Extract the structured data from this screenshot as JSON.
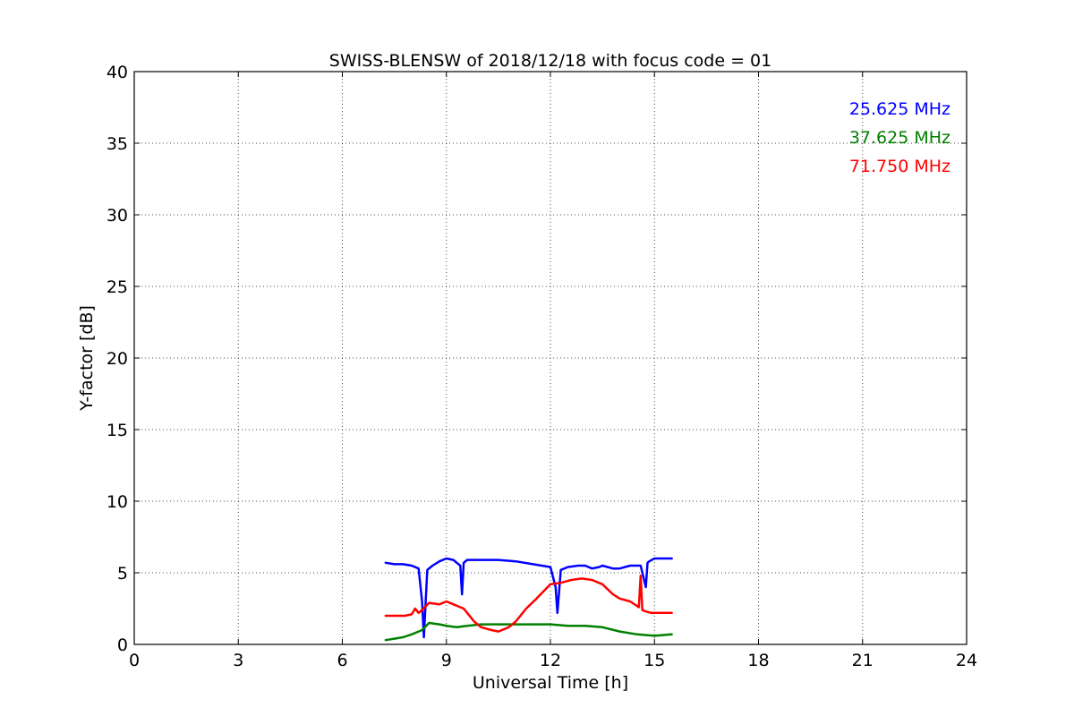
{
  "chart_data": {
    "type": "line",
    "title": "SWISS-BLENSW of 2018/12/18 with focus code = 01",
    "xlabel": "Universal Time [h]",
    "ylabel": "Y-factor [dB]",
    "xlim": [
      0,
      24
    ],
    "ylim": [
      0,
      40
    ],
    "xticks": [
      0,
      3,
      6,
      9,
      12,
      15,
      18,
      21,
      24
    ],
    "yticks": [
      0,
      5,
      10,
      15,
      20,
      25,
      30,
      35,
      40
    ],
    "grid": true,
    "legend_position": "top-right",
    "series": [
      {
        "name": "25.625 MHz",
        "color": "#0000ff",
        "x": [
          7.25,
          7.5,
          7.75,
          8.0,
          8.2,
          8.3,
          8.35,
          8.45,
          8.6,
          8.8,
          9.0,
          9.2,
          9.4,
          9.45,
          9.5,
          9.6,
          9.8,
          10.0,
          10.5,
          11.0,
          11.5,
          12.0,
          12.15,
          12.2,
          12.3,
          12.5,
          12.8,
          13.0,
          13.2,
          13.4,
          13.5,
          13.8,
          14.0,
          14.3,
          14.6,
          14.75,
          14.8,
          14.85,
          15.0,
          15.2,
          15.5
        ],
        "y": [
          5.7,
          5.6,
          5.6,
          5.5,
          5.3,
          3.0,
          0.5,
          5.2,
          5.5,
          5.8,
          6.0,
          5.9,
          5.5,
          3.5,
          5.7,
          5.9,
          5.9,
          5.9,
          5.9,
          5.8,
          5.6,
          5.4,
          4.0,
          2.2,
          5.2,
          5.4,
          5.5,
          5.5,
          5.3,
          5.4,
          5.5,
          5.3,
          5.3,
          5.5,
          5.5,
          4.0,
          5.7,
          5.8,
          6.0,
          6.0,
          6.0
        ]
      },
      {
        "name": "37.625 MHz",
        "color": "#008000",
        "x": [
          7.25,
          7.5,
          7.75,
          8.0,
          8.3,
          8.5,
          8.8,
          9.0,
          9.3,
          9.6,
          10.0,
          10.5,
          11.0,
          11.5,
          12.0,
          12.5,
          13.0,
          13.5,
          14.0,
          14.5,
          15.0,
          15.5
        ],
        "y": [
          0.3,
          0.4,
          0.5,
          0.7,
          1.0,
          1.5,
          1.4,
          1.3,
          1.2,
          1.3,
          1.4,
          1.4,
          1.4,
          1.4,
          1.4,
          1.3,
          1.3,
          1.2,
          0.9,
          0.7,
          0.6,
          0.7
        ]
      },
      {
        "name": "71.750 MHz",
        "color": "#ff0000",
        "x": [
          7.25,
          7.5,
          7.8,
          8.0,
          8.1,
          8.2,
          8.3,
          8.5,
          8.8,
          9.0,
          9.2,
          9.5,
          9.8,
          10.0,
          10.3,
          10.5,
          10.8,
          11.0,
          11.3,
          11.6,
          12.0,
          12.3,
          12.6,
          12.9,
          13.2,
          13.5,
          13.8,
          14.0,
          14.3,
          14.55,
          14.6,
          14.65,
          14.75,
          14.9,
          15.2,
          15.5
        ],
        "y": [
          2.0,
          2.0,
          2.0,
          2.1,
          2.5,
          2.2,
          2.4,
          2.9,
          2.8,
          3.0,
          2.8,
          2.5,
          1.6,
          1.2,
          1.0,
          0.9,
          1.2,
          1.6,
          2.5,
          3.2,
          4.2,
          4.3,
          4.5,
          4.6,
          4.5,
          4.2,
          3.5,
          3.2,
          3.0,
          2.6,
          4.8,
          2.4,
          2.3,
          2.2,
          2.2,
          2.2
        ]
      }
    ]
  }
}
